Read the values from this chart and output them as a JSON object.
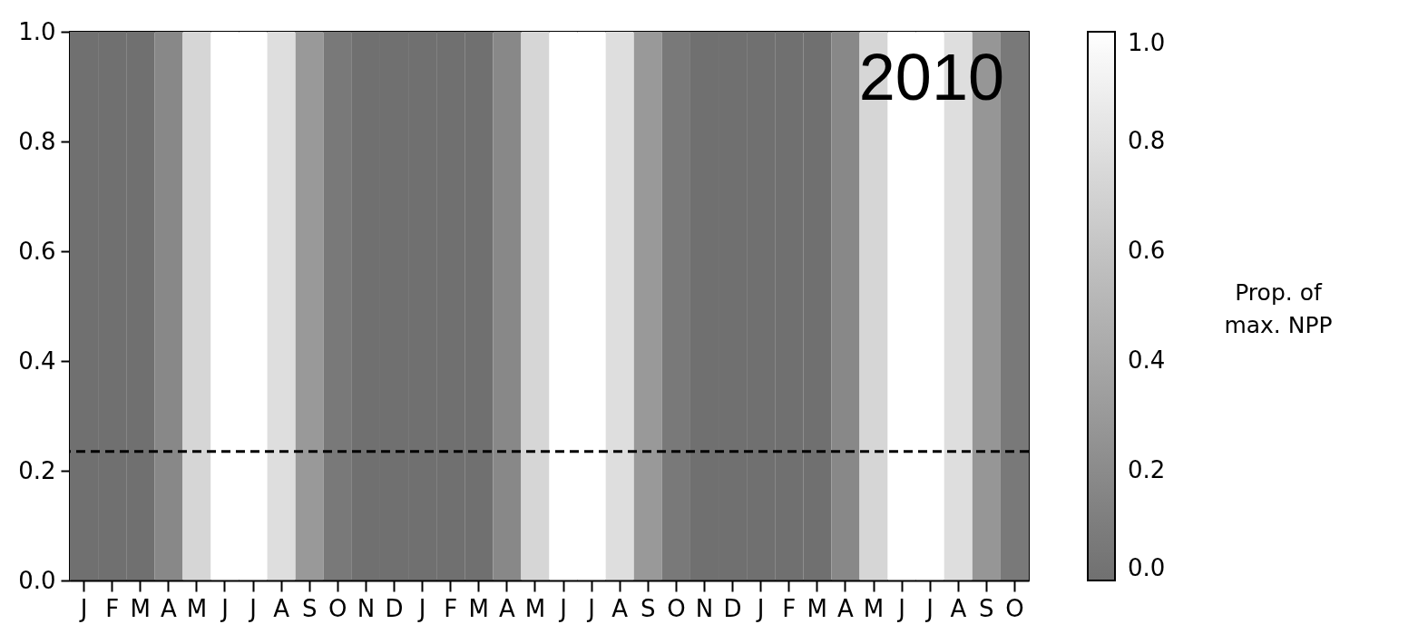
{
  "chart_data": {
    "type": "heatmap",
    "categories": [
      "J",
      "F",
      "M",
      "A",
      "M",
      "J",
      "J",
      "A",
      "S",
      "O",
      "N",
      "D",
      "J",
      "F",
      "M",
      "A",
      "M",
      "J",
      "J",
      "A",
      "S",
      "O",
      "N",
      "D",
      "J",
      "F",
      "M",
      "A",
      "M",
      "J",
      "J",
      "A",
      "S",
      "O"
    ],
    "cells": [
      [
        0,
        0,
        0,
        0.18,
        0.73,
        1,
        1,
        0.78,
        0.3,
        0.07,
        0,
        0,
        0,
        0,
        0,
        0.18,
        0.73,
        1,
        1,
        0.78,
        0.3,
        0.07,
        0,
        0,
        0,
        0,
        0,
        0.18,
        0.73,
        1,
        1,
        0.78,
        0.28,
        0.07
      ]
    ],
    "ylim": [
      0,
      1
    ],
    "yticks": [
      {
        "value": 0,
        "label": "0.0"
      },
      0.2,
      0.4,
      0.6,
      0.8,
      {
        "value": 1,
        "label": "1.0"
      }
    ],
    "clim": [
      0,
      1
    ],
    "cticks": [
      {
        "value": 0,
        "label": "0.0"
      },
      0.2,
      0.4,
      0.6,
      0.8,
      {
        "value": 1,
        "label": "1.0"
      }
    ],
    "clabel": "Prop. of max. NPP",
    "ref_lines": [
      {
        "axis": "y",
        "value": 0.235,
        "color": "#000000",
        "line_style": "dashed"
      }
    ],
    "annotations": [
      "2010"
    ],
    "grid": false
  }
}
